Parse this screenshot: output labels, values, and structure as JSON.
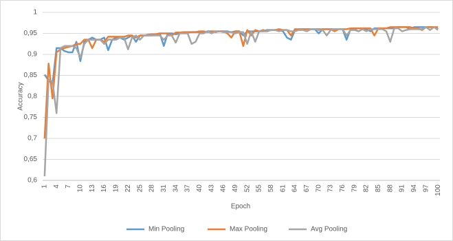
{
  "chart_data": {
    "type": "line",
    "x_label": "Epoch",
    "y_label": "Accuracy",
    "categories": [
      "1",
      null,
      null,
      "4",
      null,
      null,
      "7",
      null,
      null,
      "10",
      null,
      null,
      "13",
      null,
      null,
      "16",
      null,
      null,
      "19",
      null,
      null,
      "22",
      null,
      null,
      "25",
      null,
      null,
      "28",
      null,
      null,
      "31",
      null,
      null,
      "34",
      null,
      null,
      "37",
      null,
      null,
      "40",
      null,
      null,
      "43",
      null,
      null,
      "46",
      null,
      null,
      "49",
      null,
      null,
      "52",
      null,
      null,
      "55",
      null,
      null,
      "58",
      null,
      null,
      "61",
      null,
      null,
      "64",
      null,
      null,
      "67",
      null,
      null,
      "70",
      null,
      null,
      "73",
      null,
      null,
      "76",
      null,
      null,
      "79",
      null,
      null,
      "82",
      null,
      null,
      "85",
      null,
      null,
      "88",
      null,
      null,
      "91",
      null,
      null,
      "94",
      null,
      null,
      "97",
      null,
      null,
      "100"
    ],
    "series": [
      {
        "name": "Min Pooling",
        "color": "#5b9bd5",
        "values": [
          0.852,
          0.838,
          0.83,
          0.915,
          0.915,
          0.908,
          0.905,
          0.905,
          0.93,
          0.884,
          0.93,
          0.935,
          0.94,
          0.935,
          0.935,
          0.94,
          0.91,
          0.935,
          0.94,
          0.94,
          0.935,
          0.94,
          0.945,
          0.93,
          0.945,
          0.945,
          0.945,
          0.945,
          0.948,
          0.95,
          0.92,
          0.95,
          0.95,
          0.948,
          0.95,
          0.952,
          0.952,
          0.953,
          0.953,
          0.953,
          0.952,
          0.955,
          0.955,
          0.953,
          0.955,
          0.955,
          0.955,
          0.953,
          0.955,
          0.955,
          0.945,
          0.955,
          0.955,
          0.955,
          0.955,
          0.955,
          0.958,
          0.958,
          0.958,
          0.958,
          0.955,
          0.94,
          0.935,
          0.958,
          0.96,
          0.96,
          0.96,
          0.96,
          0.96,
          0.95,
          0.96,
          0.96,
          0.96,
          0.96,
          0.96,
          0.96,
          0.935,
          0.96,
          0.96,
          0.955,
          0.96,
          0.96,
          0.955,
          0.962,
          0.962,
          0.962,
          0.962,
          0.962,
          0.962,
          0.965,
          0.965,
          0.965,
          0.96,
          0.965,
          0.965,
          0.965,
          0.965,
          0.965,
          0.965,
          0.96
        ]
      },
      {
        "name": "Max Pooling",
        "color": "#ed7d31",
        "values": [
          0.7,
          0.878,
          0.795,
          0.905,
          0.912,
          0.915,
          0.918,
          0.92,
          0.925,
          0.925,
          0.935,
          0.935,
          0.915,
          0.935,
          0.935,
          0.93,
          0.942,
          0.942,
          0.942,
          0.942,
          0.942,
          0.945,
          0.945,
          0.94,
          0.945,
          0.945,
          0.947,
          0.948,
          0.948,
          0.95,
          0.95,
          0.95,
          0.945,
          0.952,
          0.952,
          0.953,
          0.953,
          0.953,
          0.953,
          0.955,
          0.955,
          0.953,
          0.955,
          0.955,
          0.955,
          0.955,
          0.95,
          0.94,
          0.955,
          0.955,
          0.92,
          0.958,
          0.945,
          0.958,
          0.955,
          0.958,
          0.955,
          0.958,
          0.958,
          0.96,
          0.958,
          0.958,
          0.945,
          0.96,
          0.96,
          0.96,
          0.96,
          0.96,
          0.96,
          0.96,
          0.96,
          0.96,
          0.96,
          0.955,
          0.96,
          0.96,
          0.96,
          0.962,
          0.962,
          0.962,
          0.962,
          0.962,
          0.962,
          0.945,
          0.962,
          0.962,
          0.962,
          0.965,
          0.965,
          0.965,
          0.965,
          0.965,
          0.965,
          0.962,
          0.962,
          0.958,
          0.965,
          0.965,
          0.965,
          0.965
        ]
      },
      {
        "name": "Avg Pooling",
        "color": "#a5a5a5",
        "values": [
          0.61,
          0.84,
          0.835,
          0.76,
          0.915,
          0.92,
          0.92,
          0.92,
          0.915,
          0.892,
          0.925,
          0.935,
          0.935,
          0.935,
          0.935,
          0.925,
          0.935,
          0.935,
          0.935,
          0.94,
          0.94,
          0.912,
          0.94,
          0.945,
          0.935,
          0.945,
          0.945,
          0.945,
          0.945,
          0.945,
          0.935,
          0.945,
          0.945,
          0.928,
          0.95,
          0.95,
          0.95,
          0.925,
          0.93,
          0.95,
          0.95,
          0.955,
          0.95,
          0.955,
          0.955,
          0.953,
          0.953,
          0.953,
          0.95,
          0.953,
          0.953,
          0.925,
          0.955,
          0.93,
          0.955,
          0.955,
          0.955,
          0.958,
          0.958,
          0.955,
          0.958,
          0.958,
          0.955,
          0.955,
          0.958,
          0.958,
          0.955,
          0.96,
          0.96,
          0.958,
          0.958,
          0.945,
          0.958,
          0.96,
          0.96,
          0.96,
          0.945,
          0.958,
          0.958,
          0.955,
          0.96,
          0.955,
          0.96,
          0.96,
          0.96,
          0.96,
          0.955,
          0.93,
          0.962,
          0.962,
          0.955,
          0.958,
          0.96,
          0.96,
          0.96,
          0.96,
          0.965,
          0.958,
          0.965,
          0.958
        ]
      }
    ],
    "ylim": [
      0.6,
      1
    ],
    "yticks": [
      {
        "value": 0.6,
        "label": "0,6"
      },
      {
        "value": 0.65,
        "label": "0,65"
      },
      {
        "value": 0.7,
        "label": "0,7"
      },
      {
        "value": 0.75,
        "label": "0,75"
      },
      {
        "value": 0.8,
        "label": "0,8"
      },
      {
        "value": 0.85,
        "label": "0,85"
      },
      {
        "value": 0.9,
        "label": "0,9"
      },
      {
        "value": 0.95,
        "label": "0,95"
      },
      1
    ],
    "grid": true,
    "legend": "bottom"
  }
}
